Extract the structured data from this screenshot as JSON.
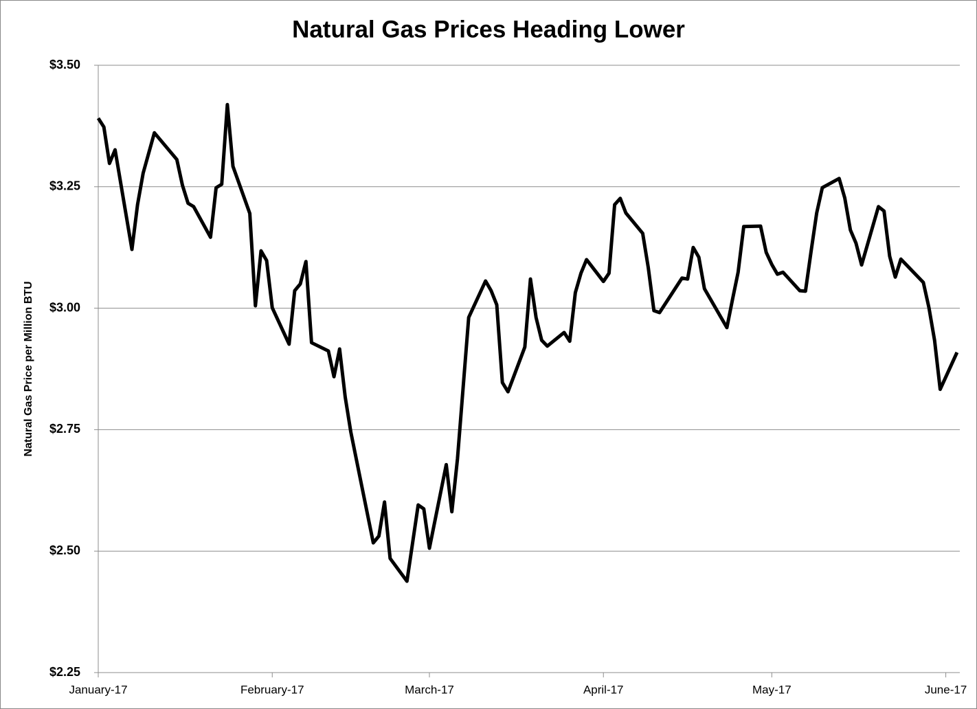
{
  "chart_data": {
    "type": "line",
    "title": "Natural Gas Prices Heading Lower",
    "y_label": "Natural Gas Price per Million BTU",
    "color": "#000000",
    "grid": true,
    "xlim": [
      0,
      153.5
    ],
    "xticks": [
      {
        "value": 0,
        "label": "January-17"
      },
      {
        "value": 31,
        "label": "February-17"
      },
      {
        "value": 59,
        "label": "March-17"
      },
      {
        "value": 90,
        "label": "April-17"
      },
      {
        "value": 120,
        "label": "May-17"
      },
      {
        "value": 151,
        "label": "June-17"
      }
    ],
    "ylim": [
      2.25,
      3.5
    ],
    "yticks": [
      {
        "value": 2.25,
        "label": "$2.25"
      },
      {
        "value": 2.5,
        "label": "$2.50"
      },
      {
        "value": 2.75,
        "label": "$2.75"
      },
      {
        "value": 3.0,
        "label": "$3.00"
      },
      {
        "value": 3.25,
        "label": "$3.25"
      },
      {
        "value": 3.5,
        "label": "$3.50"
      }
    ],
    "x": [
      0,
      1,
      2,
      3,
      6,
      7,
      8,
      10,
      14,
      15,
      16,
      17,
      20,
      21,
      22,
      23,
      24,
      27,
      28,
      29,
      30,
      31,
      34,
      35,
      36,
      37,
      38,
      41,
      42,
      43,
      44,
      45,
      49,
      50,
      51,
      52,
      55,
      57,
      58,
      59,
      62,
      63,
      64,
      66,
      69,
      70,
      71,
      72,
      73,
      76,
      77,
      78,
      79,
      80,
      83,
      84,
      85,
      86,
      87,
      90,
      91,
      92,
      93,
      94,
      97,
      98,
      99,
      100,
      104,
      105,
      106,
      107,
      108,
      112,
      113,
      114,
      115,
      118,
      119,
      120,
      121,
      122,
      125,
      126,
      127,
      128,
      129,
      132,
      133,
      134,
      135,
      136,
      139,
      140,
      141,
      142,
      143,
      147,
      148,
      149,
      150,
      153
    ],
    "values": [
      3.391,
      3.373,
      3.298,
      3.326,
      3.121,
      3.213,
      3.278,
      3.361,
      3.306,
      3.253,
      3.216,
      3.209,
      3.146,
      3.248,
      3.255,
      3.419,
      3.292,
      3.195,
      3.005,
      3.118,
      3.098,
      3.001,
      2.926,
      3.036,
      3.05,
      3.096,
      2.929,
      2.912,
      2.859,
      2.916,
      2.817,
      2.745,
      2.517,
      2.531,
      2.601,
      2.485,
      2.438,
      2.595,
      2.587,
      2.506,
      2.678,
      2.581,
      2.69,
      2.981,
      3.056,
      3.036,
      3.007,
      2.847,
      2.828,
      2.92,
      3.06,
      2.981,
      2.934,
      2.922,
      2.95,
      2.932,
      3.032,
      3.072,
      3.1,
      3.055,
      3.072,
      3.213,
      3.226,
      3.196,
      3.154,
      3.083,
      2.995,
      2.991,
      3.062,
      3.06,
      3.125,
      3.105,
      3.04,
      2.96,
      3.018,
      3.074,
      3.168,
      3.169,
      3.115,
      3.09,
      3.07,
      3.074,
      3.036,
      3.035,
      3.117,
      3.196,
      3.248,
      3.267,
      3.227,
      3.161,
      3.134,
      3.089,
      3.209,
      3.2,
      3.107,
      3.064,
      3.101,
      3.053,
      3.001,
      2.934,
      2.833,
      2.909
    ]
  }
}
